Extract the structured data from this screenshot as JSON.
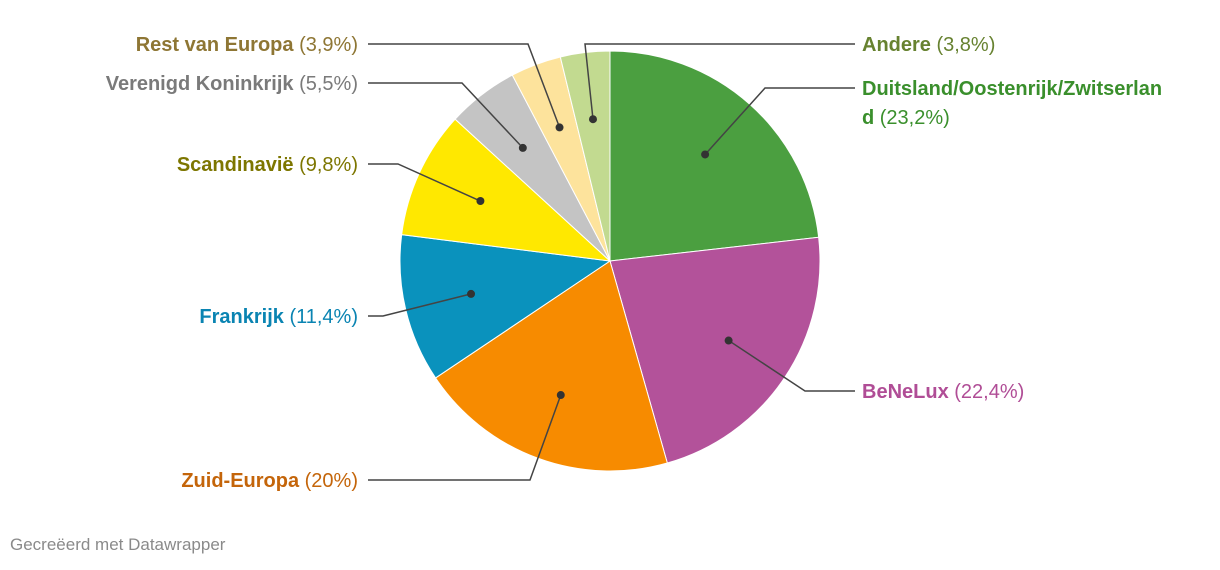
{
  "chart_data": {
    "type": "pie",
    "title": "",
    "start": "top, clockwise",
    "slices": [
      {
        "label": "Duitsland/Oostenrijk/Zwitserland",
        "value": 23.2,
        "display": "(23,2%)",
        "color": "#4b9f40",
        "label_color": "#3a8f2c"
      },
      {
        "label": "BeNeLux",
        "value": 22.4,
        "display": "(22,4%)",
        "color": "#b3529a",
        "label_color": "#b04d96"
      },
      {
        "label": "Zuid-Europa",
        "value": 20,
        "display": "(20%)",
        "color": "#f78b00",
        "label_color": "#c4650a"
      },
      {
        "label": "Frankrijk",
        "value": 11.4,
        "display": "(11,4%)",
        "color": "#0a92bd",
        "label_color": "#0a84b2"
      },
      {
        "label": "Scandinavië",
        "value": 9.8,
        "display": "(9,8%)",
        "color": "#ffe800",
        "label_color": "#7d7600"
      },
      {
        "label": "Verenigd Koninkrijk",
        "value": 5.5,
        "display": "(5,5%)",
        "color": "#c4c4c4",
        "label_color": "#7a7a7a"
      },
      {
        "label": "Rest van Europa",
        "value": 3.9,
        "display": "(3,9%)",
        "color": "#fde39c",
        "label_color": "#8e7634"
      },
      {
        "label": "Andere",
        "value": 3.8,
        "display": "(3,8%)",
        "color": "#c2da90",
        "label_color": "#678230"
      }
    ]
  },
  "footer": {
    "credit": "Gecreëerd met Datawrapper"
  }
}
